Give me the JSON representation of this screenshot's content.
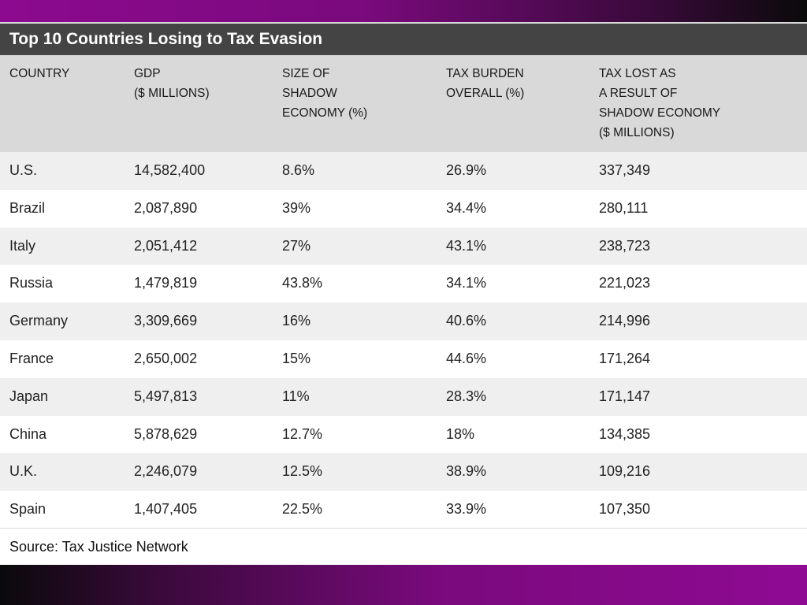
{
  "title": "Top 10 Countries Losing to Tax Evasion",
  "headers": [
    [
      "COUNTRY"
    ],
    [
      "GDP",
      "($ MILLIONS)"
    ],
    [
      "SIZE OF",
      "SHADOW",
      "ECONOMY (%)"
    ],
    [
      "TAX BURDEN",
      "OVERALL (%)"
    ],
    [
      "TAX LOST AS",
      "A RESULT OF",
      "SHADOW ECONOMY",
      "($ MILLIONS)"
    ]
  ],
  "rows": [
    [
      "U.S.",
      "14,582,400",
      "8.6%",
      "26.9%",
      "337,349"
    ],
    [
      "Brazil",
      "2,087,890",
      "39%",
      "34.4%",
      "280,111"
    ],
    [
      "Italy",
      "2,051,412",
      "27%",
      "43.1%",
      "238,723"
    ],
    [
      "Russia",
      "1,479,819",
      "43.8%",
      "34.1%",
      "221,023"
    ],
    [
      "Germany",
      "3,309,669",
      "16%",
      "40.6%",
      "214,996"
    ],
    [
      "France",
      "2,650,002",
      "15%",
      "44.6%",
      "171,264"
    ],
    [
      "Japan",
      "5,497,813",
      "11%",
      "28.3%",
      "171,147"
    ],
    [
      "China",
      "5,878,629",
      "12.7%",
      "18%",
      "134,385"
    ],
    [
      "U.K.",
      "2,246,079",
      "12.5%",
      "38.9%",
      "109,216"
    ],
    [
      "Spain",
      "1,407,405",
      "22.5%",
      "33.9%",
      "107,350"
    ]
  ],
  "source": "Source: Tax Justice Network"
}
